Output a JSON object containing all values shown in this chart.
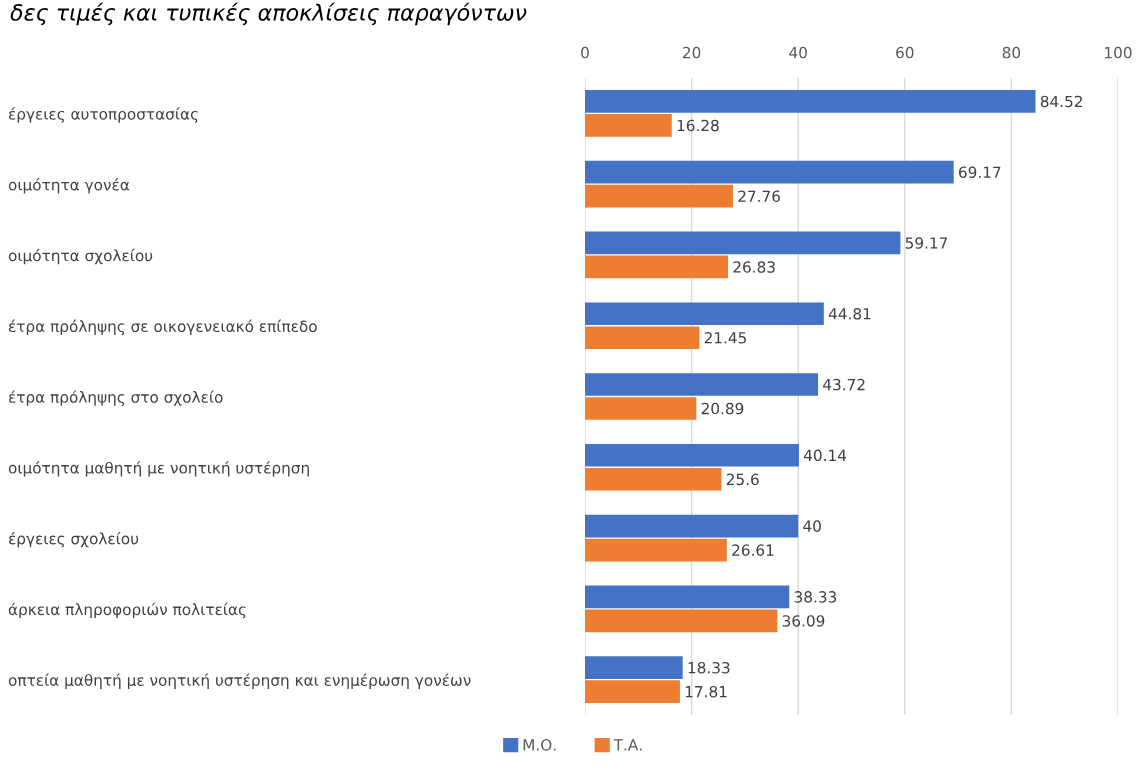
{
  "chart_data": {
    "type": "bar",
    "orientation": "horizontal",
    "title": "δες τιμές και τυπικές αποκλίσεις παραγόντων",
    "categories": [
      "έργειες αυτοπροστασίας",
      "οιμότητα γονέα",
      "οιμότητα σχολείου",
      "έτρα πρόληψης σε οικογενειακό επίπεδο",
      "έτρα πρόληψης στο σχολείο",
      "οιμότητα μαθητή με νοητική υστέρηση",
      "έργειες σχολείου",
      "άρκεια πληροφοριών πολιτείας",
      "οπτεία μαθητή με νοητική υστέρηση και ενημέρωση γονέων"
    ],
    "series": [
      {
        "name": "Μ.Ο.",
        "color": "#4472c4",
        "values": [
          84.52,
          69.17,
          59.17,
          44.81,
          43.72,
          40.14,
          40,
          38.33,
          18.33
        ]
      },
      {
        "name": "Τ.Α.",
        "color": "#ed7d31",
        "values": [
          16.28,
          27.76,
          26.83,
          21.45,
          20.89,
          25.6,
          26.61,
          36.09,
          17.81
        ]
      }
    ],
    "xlim": [
      0,
      100
    ],
    "xticks": [
      0,
      20,
      40,
      60,
      80,
      100
    ],
    "grid": "x",
    "legend": "bottom",
    "data_labels": true
  }
}
